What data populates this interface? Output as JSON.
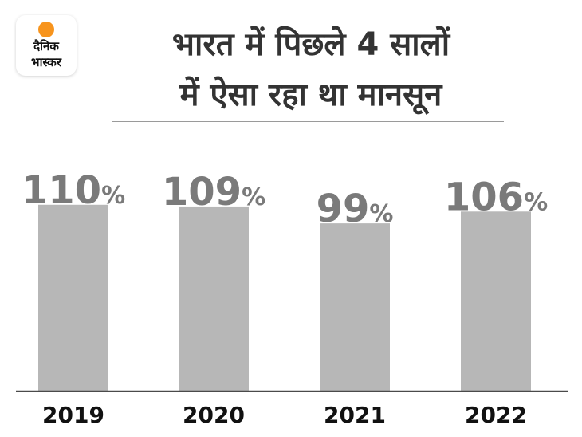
{
  "logo": {
    "line1": "दैनिक",
    "line2": "भास्कर",
    "sun_color": "#f7941d"
  },
  "header": {
    "title_line1": "भारत में पिछले 4 सालों",
    "title_line2": "में ऐसा रहा था मानसून"
  },
  "chart_data": {
    "type": "bar",
    "categories": [
      "2019",
      "2020",
      "2021",
      "2022"
    ],
    "values": [
      110,
      109,
      99,
      106
    ],
    "value_suffix": "%",
    "ylim": [
      0,
      130
    ],
    "grid": false,
    "legend": "none",
    "colors": {
      "bar": "#b7b7b7",
      "value_text": "#7a7a7a",
      "baseline": "#4a4a4a",
      "category_text": "#111111"
    }
  }
}
